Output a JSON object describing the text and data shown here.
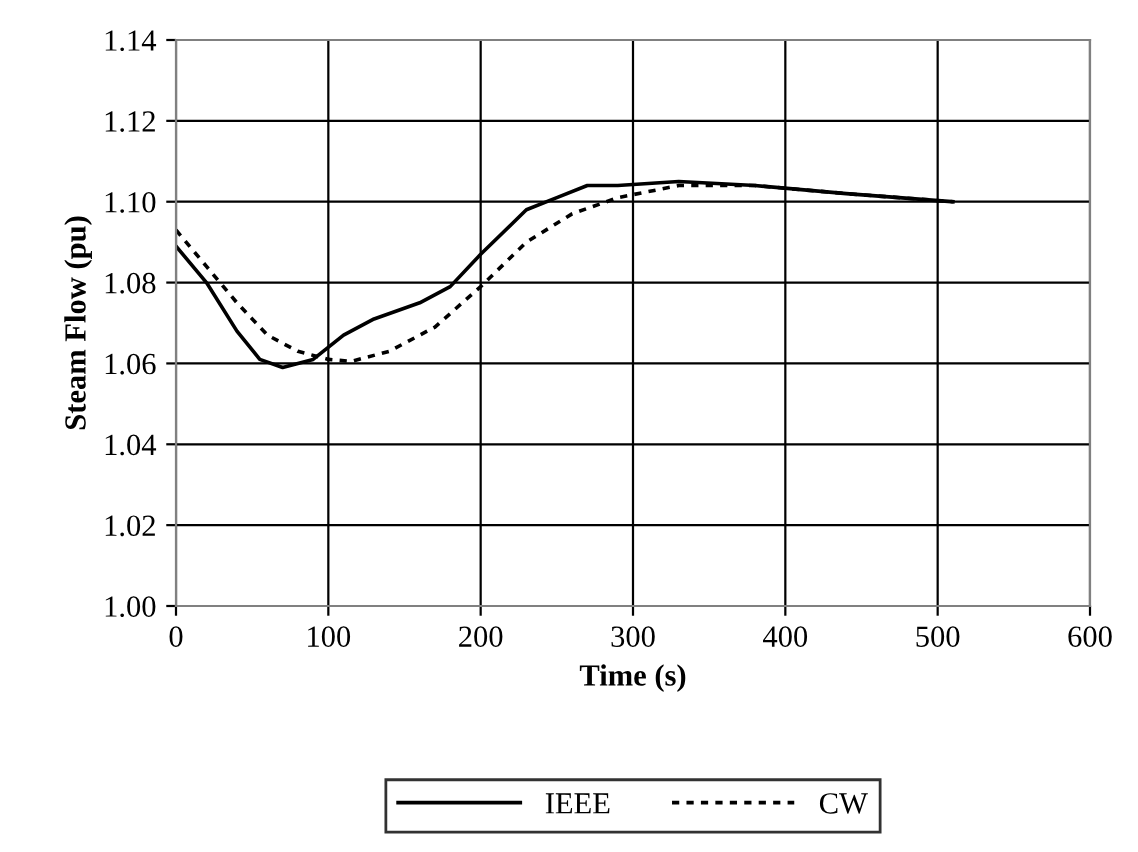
{
  "chart_data": {
    "type": "line",
    "xlabel": "Time (s)",
    "ylabel": "Steam Flow (pu)",
    "xlim": [
      0,
      600
    ],
    "xticks": [
      0,
      100,
      200,
      300,
      400,
      500,
      600
    ],
    "ylim": [
      1.0,
      1.14
    ],
    "yticks": [
      {
        "value": 1.0,
        "label": "1.00"
      },
      {
        "value": 1.02,
        "label": "1.02"
      },
      {
        "value": 1.04,
        "label": "1.04"
      },
      {
        "value": 1.06,
        "label": "1.06"
      },
      {
        "value": 1.08,
        "label": "1.08"
      },
      {
        "value": 1.1,
        "label": "1.10"
      },
      {
        "value": 1.12,
        "label": "1.12"
      },
      {
        "value": 1.14,
        "label": "1.14"
      }
    ],
    "grid": true,
    "legend": "bottom",
    "series": [
      {
        "name": "IEEE",
        "color": "#000000",
        "line_style": "solid",
        "x": [
          0,
          20,
          40,
          55,
          70,
          90,
          110,
          130,
          160,
          180,
          200,
          230,
          250,
          270,
          290,
          330,
          380,
          440,
          510
        ],
        "values": [
          1.089,
          1.08,
          1.068,
          1.061,
          1.059,
          1.061,
          1.067,
          1.071,
          1.075,
          1.079,
          1.087,
          1.098,
          1.101,
          1.104,
          1.104,
          1.105,
          1.104,
          1.102,
          1.1
        ]
      },
      {
        "name": "CW",
        "color": "#000000",
        "line_style": "dotted",
        "x": [
          0,
          20,
          40,
          60,
          80,
          100,
          115,
          140,
          170,
          200,
          230,
          260,
          290,
          330,
          380,
          440,
          510
        ],
        "values": [
          1.093,
          1.084,
          1.075,
          1.067,
          1.063,
          1.061,
          1.0605,
          1.063,
          1.069,
          1.079,
          1.09,
          1.097,
          1.101,
          1.104,
          1.104,
          1.102,
          1.1
        ]
      }
    ]
  }
}
